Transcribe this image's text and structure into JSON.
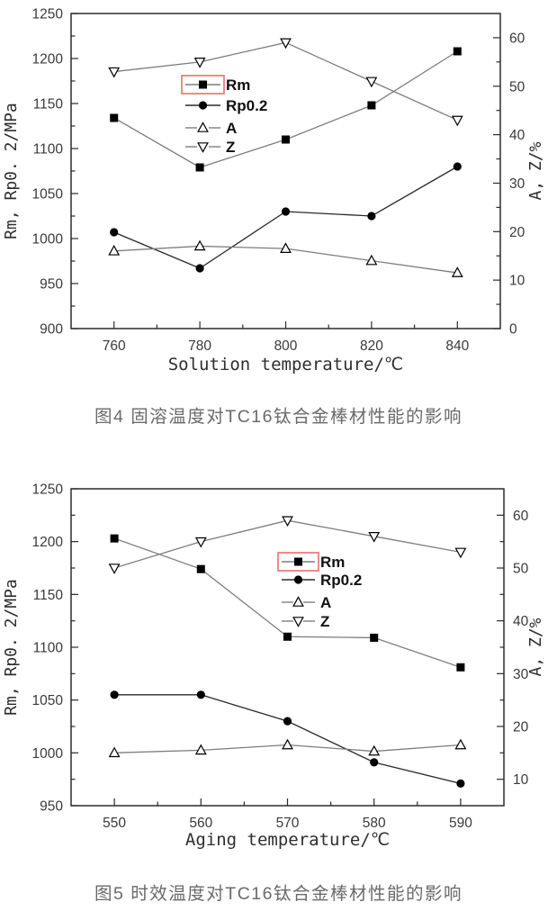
{
  "figures": [
    {
      "caption": "图4  固溶温度对TC16钛合金棒材性能的影响"
    },
    {
      "caption": "图5  时效温度对TC16钛合金棒材性能的影响"
    }
  ],
  "style": {
    "frame_color": "#2b2b2b",
    "tick_label_color": "#3a3a3a",
    "axis_title_color": "#2e2e2e",
    "series_line_color": "#7d7d7d",
    "marker_color": "#000000",
    "legend_text_color": "#111111",
    "legend_highlight_color": "#e96e6e",
    "caption_color": "#6a6a6a"
  },
  "chart_data": [
    {
      "type": "line",
      "title": "",
      "xlabel": "Solution temperature/℃",
      "ylabel_left": "Rm, Rp0. 2/MPa",
      "ylabel_right": "A, Z/%",
      "xlim": [
        750,
        850
      ],
      "x_ticks": [
        760,
        780,
        800,
        820,
        840
      ],
      "x_minor_step": 10,
      "left_lim": [
        900,
        1250
      ],
      "left_ticks": [
        900,
        950,
        1000,
        1050,
        1100,
        1150,
        1200,
        1250
      ],
      "left_minor_step": 25,
      "right_lim": [
        0,
        65
      ],
      "right_ticks": [
        0,
        10,
        20,
        30,
        40,
        50,
        60
      ],
      "right_minor_step": 5,
      "grid": false,
      "legend": {
        "position": "upper-left-of-center",
        "highlighted_entry": "Rm"
      },
      "x": [
        760,
        780,
        800,
        820,
        840
      ],
      "series": [
        {
          "name": "Rm",
          "axis": "left",
          "marker": "filled-square",
          "line_style": "solid",
          "line_color": "#7d7d7d",
          "values": [
            1134,
            1079,
            1110,
            1148,
            1208
          ]
        },
        {
          "name": "Rp0.2",
          "axis": "left",
          "marker": "filled-circle",
          "line_style": "solid",
          "line_color": "#2a2a2a",
          "values": [
            1007,
            967,
            1030,
            1025,
            1080
          ]
        },
        {
          "name": "A",
          "axis": "right",
          "marker": "open-triangle-up",
          "line_style": "dashed-legend",
          "line_color": "#7d7d7d",
          "values": [
            16,
            17,
            16.5,
            14,
            11.5
          ]
        },
        {
          "name": "Z",
          "axis": "right",
          "marker": "open-triangle-down",
          "line_style": "dashed-legend",
          "line_color": "#7d7d7d",
          "values": [
            53,
            55,
            59,
            51,
            43
          ]
        }
      ]
    },
    {
      "type": "line",
      "title": "",
      "xlabel": "Aging temperature/℃",
      "ylabel_left": "Rm, Rp0. 2/MPa",
      "ylabel_right": "A, Z/%",
      "xlim": [
        545,
        595
      ],
      "x_ticks": [
        550,
        560,
        570,
        580,
        590
      ],
      "x_minor_step": 5,
      "left_lim": [
        950,
        1250
      ],
      "left_ticks": [
        950,
        1000,
        1050,
        1100,
        1150,
        1200,
        1250
      ],
      "left_minor_step": 25,
      "right_lim": [
        5,
        65
      ],
      "right_ticks": [
        10,
        20,
        30,
        40,
        50,
        60
      ],
      "right_minor_step": 5,
      "grid": false,
      "legend": {
        "position": "upper-center",
        "highlighted_entry": "Rm"
      },
      "x": [
        550,
        560,
        570,
        580,
        590
      ],
      "series": [
        {
          "name": "Rm",
          "axis": "left",
          "marker": "filled-square",
          "line_style": "solid",
          "line_color": "#7d7d7d",
          "values": [
            1203,
            1174,
            1110,
            1109,
            1081
          ]
        },
        {
          "name": "Rp0.2",
          "axis": "left",
          "marker": "filled-circle",
          "line_style": "solid",
          "line_color": "#2a2a2a",
          "values": [
            1055,
            1055,
            1030,
            991,
            971
          ]
        },
        {
          "name": "A",
          "axis": "right",
          "marker": "open-triangle-up",
          "line_style": "dashed-legend",
          "line_color": "#7d7d7d",
          "values": [
            15,
            15.5,
            16.5,
            15.3,
            16.5
          ]
        },
        {
          "name": "Z",
          "axis": "right",
          "marker": "open-triangle-down",
          "line_style": "dashed-legend",
          "line_color": "#7d7d7d",
          "values": [
            50,
            55,
            59,
            56,
            53
          ]
        }
      ]
    }
  ]
}
